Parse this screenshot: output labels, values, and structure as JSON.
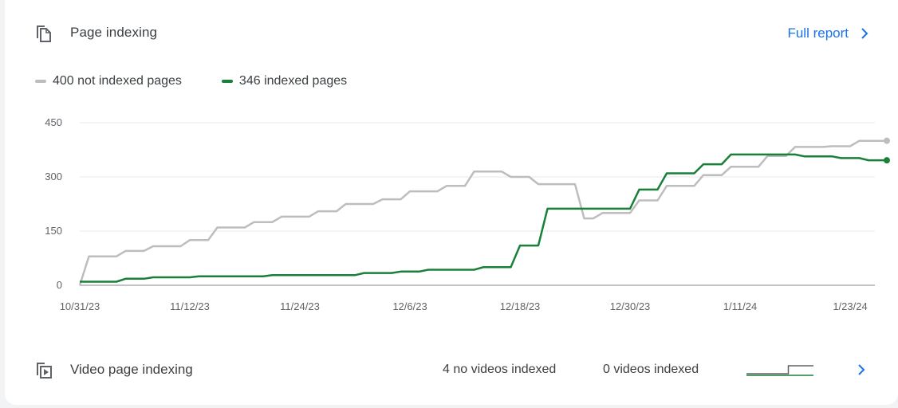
{
  "header": {
    "title": "Page indexing",
    "full_report_label": "Full report"
  },
  "colors": {
    "not_indexed": "#bdbdbd",
    "indexed": "#188038",
    "link": "#1a73e8"
  },
  "legend": {
    "not_indexed_label": "400 not indexed pages",
    "indexed_label": "346 indexed pages"
  },
  "chart_data": {
    "type": "line",
    "xlabel": "",
    "ylabel": "",
    "ylim": [
      0,
      450
    ],
    "yticks": [
      "0",
      "150",
      "300",
      "450"
    ],
    "xticks": [
      "10/31/23",
      "11/12/23",
      "11/24/23",
      "12/6/23",
      "12/18/23",
      "12/30/23",
      "1/11/24",
      "1/23/24"
    ],
    "x_range": [
      "10/31/23",
      "1/29/24"
    ],
    "grid": true,
    "series": [
      {
        "name": "not indexed pages",
        "color": "#bdbdbd",
        "points": [
          [
            "10/31/23",
            0
          ],
          [
            "11/1/23",
            80
          ],
          [
            "11/4/23",
            80
          ],
          [
            "11/5/23",
            95
          ],
          [
            "11/7/23",
            95
          ],
          [
            "11/8/23",
            108
          ],
          [
            "11/11/23",
            108
          ],
          [
            "11/12/23",
            125
          ],
          [
            "11/14/23",
            125
          ],
          [
            "11/15/23",
            160
          ],
          [
            "11/18/23",
            160
          ],
          [
            "11/19/23",
            175
          ],
          [
            "11/21/23",
            175
          ],
          [
            "11/22/23",
            190
          ],
          [
            "11/25/23",
            190
          ],
          [
            "11/26/23",
            205
          ],
          [
            "11/28/23",
            205
          ],
          [
            "11/29/23",
            225
          ],
          [
            "12/2/23",
            225
          ],
          [
            "12/3/23",
            238
          ],
          [
            "12/5/23",
            238
          ],
          [
            "12/6/23",
            260
          ],
          [
            "12/9/23",
            260
          ],
          [
            "12/10/23",
            275
          ],
          [
            "12/12/23",
            275
          ],
          [
            "12/13/23",
            315
          ],
          [
            "12/16/23",
            315
          ],
          [
            "12/17/23",
            300
          ],
          [
            "12/19/23",
            300
          ],
          [
            "12/20/23",
            280
          ],
          [
            "12/24/23",
            280
          ],
          [
            "12/25/23",
            185
          ],
          [
            "12/26/23",
            185
          ],
          [
            "12/27/23",
            200
          ],
          [
            "12/30/23",
            200
          ],
          [
            "12/31/23",
            235
          ],
          [
            "1/2/24",
            235
          ],
          [
            "1/3/24",
            275
          ],
          [
            "1/6/24",
            275
          ],
          [
            "1/7/24",
            305
          ],
          [
            "1/9/24",
            305
          ],
          [
            "1/10/24",
            328
          ],
          [
            "1/13/24",
            328
          ],
          [
            "1/14/24",
            358
          ],
          [
            "1/16/24",
            358
          ],
          [
            "1/17/24",
            383
          ],
          [
            "1/20/24",
            383
          ],
          [
            "1/21/24",
            385
          ],
          [
            "1/23/24",
            385
          ],
          [
            "1/24/24",
            400
          ],
          [
            "1/27/24",
            400
          ]
        ]
      },
      {
        "name": "indexed pages",
        "color": "#188038",
        "points": [
          [
            "10/31/23",
            10
          ],
          [
            "11/4/23",
            10
          ],
          [
            "11/5/23",
            18
          ],
          [
            "11/7/23",
            18
          ],
          [
            "11/8/23",
            22
          ],
          [
            "11/12/23",
            22
          ],
          [
            "11/13/23",
            25
          ],
          [
            "11/20/23",
            25
          ],
          [
            "11/21/23",
            28
          ],
          [
            "11/30/23",
            28
          ],
          [
            "12/1/23",
            34
          ],
          [
            "12/4/23",
            34
          ],
          [
            "12/5/23",
            38
          ],
          [
            "12/7/23",
            38
          ],
          [
            "12/8/23",
            43
          ],
          [
            "12/13/23",
            43
          ],
          [
            "12/14/23",
            50
          ],
          [
            "12/17/23",
            50
          ],
          [
            "12/18/23",
            110
          ],
          [
            "12/20/23",
            110
          ],
          [
            "12/21/23",
            212
          ],
          [
            "12/30/23",
            212
          ],
          [
            "12/31/23",
            265
          ],
          [
            "1/2/24",
            265
          ],
          [
            "1/3/24",
            310
          ],
          [
            "1/6/24",
            310
          ],
          [
            "1/7/24",
            335
          ],
          [
            "1/9/24",
            335
          ],
          [
            "1/10/24",
            362
          ],
          [
            "1/17/24",
            362
          ],
          [
            "1/18/24",
            357
          ],
          [
            "1/21/24",
            357
          ],
          [
            "1/22/24",
            352
          ],
          [
            "1/24/24",
            352
          ],
          [
            "1/25/24",
            346
          ],
          [
            "1/27/24",
            346
          ]
        ]
      }
    ]
  },
  "video": {
    "title": "Video page indexing",
    "no_videos_label": "4 no videos indexed",
    "videos_label": "0 videos indexed",
    "sparkline": {
      "series": [
        {
          "color": "#5f6368",
          "values": [
            0,
            0,
            0,
            0,
            0,
            1,
            1,
            1,
            1
          ]
        },
        {
          "color": "#188038",
          "values": [
            0,
            0,
            0,
            0,
            0,
            0,
            0,
            0,
            0
          ]
        }
      ]
    }
  }
}
